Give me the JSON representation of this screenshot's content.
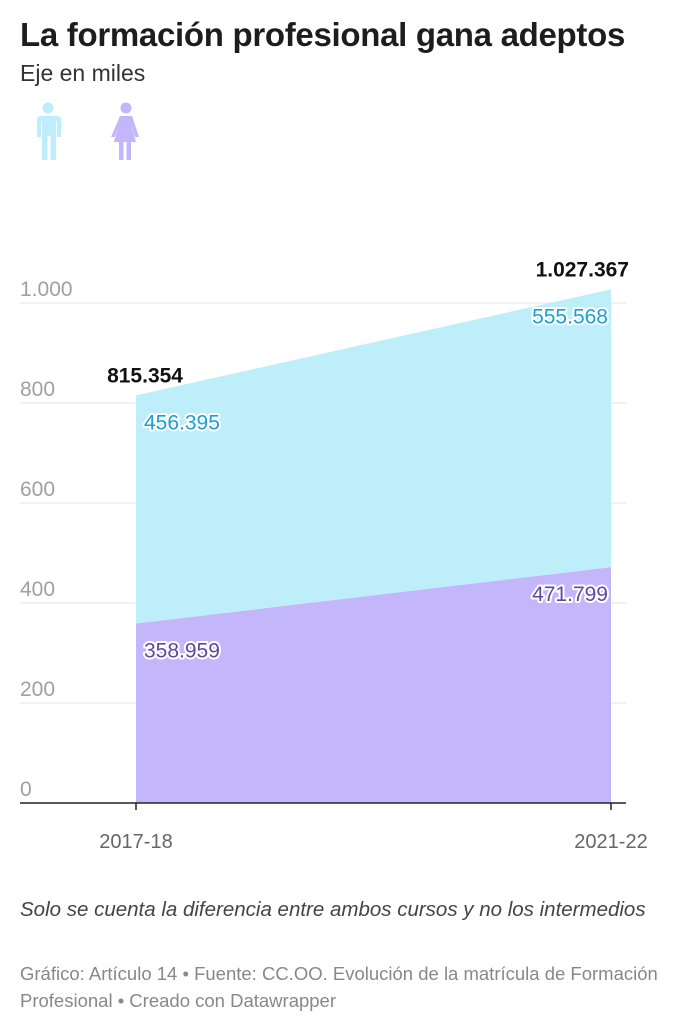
{
  "header": {
    "title": "La formación profesional gana adeptos",
    "subtitle": "Eje en miles"
  },
  "legend": [
    {
      "icon": "man-icon",
      "color": "#bdeefa"
    },
    {
      "icon": "woman-icon",
      "color": "#c4b6fb"
    }
  ],
  "chart_data": {
    "type": "area",
    "stacked": true,
    "categories": [
      "2017-18",
      "2021-22"
    ],
    "ylim": [
      0,
      1000
    ],
    "yticks": [
      0,
      200,
      400,
      600,
      800,
      1000
    ],
    "ytick_labels": [
      "0",
      "200",
      "400",
      "600",
      "800",
      "1.000"
    ],
    "grid": true,
    "series": [
      {
        "key": "women",
        "values": [
          358.959,
          471.799
        ],
        "labels": [
          "358.959",
          "471.799"
        ],
        "color": "#c4b6fb",
        "label_color": "#5a4a9e"
      },
      {
        "key": "men",
        "values": [
          456.395,
          555.568
        ],
        "labels": [
          "456.395",
          "555.568"
        ],
        "color": "#bdeefa",
        "label_color": "#1b9fd1"
      }
    ],
    "totals": {
      "values": [
        815.354,
        1027.367
      ],
      "labels": [
        "815.354",
        "1.027.367"
      ]
    }
  },
  "footer": {
    "note": "Solo se cuenta la diferencia entre ambos cursos y no los intermedios",
    "source": "Gráfico: Artículo 14 • Fuente: CC.OO. Evolución de la matrícula de Formación Profesional • Creado con Datawrapper"
  }
}
